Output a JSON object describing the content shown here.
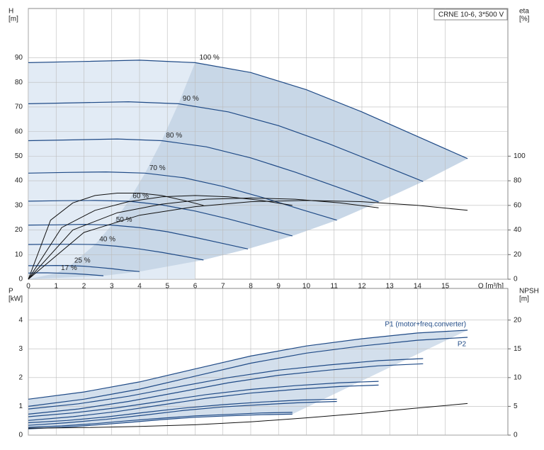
{
  "chart_data": [
    {
      "type": "line",
      "box_label": "CRNE 10-6, 3*500 V",
      "ylabel": [
        "H",
        "[m]"
      ],
      "y2label": [
        "eta",
        "[%]"
      ],
      "xlabel": "Q [m³/h]",
      "xlim": [
        0,
        17.25
      ],
      "xticks": [
        0,
        1,
        2,
        3,
        4,
        5,
        6,
        7,
        8,
        9,
        10,
        11,
        12,
        13,
        14,
        15
      ],
      "ylim": [
        0,
        110
      ],
      "yticks": [
        0,
        10,
        20,
        30,
        40,
        50,
        60,
        70,
        80,
        90
      ],
      "y2lim": [
        0,
        220
      ],
      "y2ticks": [
        0,
        20,
        40,
        60,
        80,
        100
      ],
      "grid": true,
      "series": [
        {
          "name": "100 %",
          "color": "#1f4a86",
          "x": [
            0,
            2,
            4,
            6,
            8,
            10,
            12,
            14,
            15.8
          ],
          "values": [
            88,
            88.5,
            89,
            88,
            84,
            77,
            68,
            58,
            49
          ]
        },
        {
          "name": "90 %",
          "color": "#1f4a86",
          "x": [
            0,
            1.8,
            3.6,
            5.4,
            7.2,
            9,
            10.8,
            12.6,
            14.2
          ],
          "values": [
            71.3,
            71.7,
            72.1,
            71.3,
            68,
            62.4,
            55.1,
            47,
            39.7
          ]
        },
        {
          "name": "80 %",
          "color": "#1f4a86",
          "x": [
            0,
            1.6,
            3.2,
            4.8,
            6.4,
            8,
            9.6,
            11.2,
            12.6
          ],
          "values": [
            56.3,
            56.6,
            57,
            56.3,
            53.8,
            49.3,
            43.5,
            37.1,
            31.4
          ]
        },
        {
          "name": "70 %",
          "color": "#1f4a86",
          "x": [
            0,
            1.4,
            2.8,
            4.2,
            5.6,
            7,
            8.4,
            9.8,
            11.1
          ],
          "values": [
            43.1,
            43.4,
            43.6,
            43.1,
            41.2,
            37.7,
            33.3,
            28.4,
            24
          ]
        },
        {
          "name": "60 %",
          "color": "#1f4a86",
          "x": [
            0,
            1.2,
            2.4,
            3.6,
            4.8,
            6,
            7.2,
            8.4,
            9.5
          ],
          "values": [
            31.7,
            31.9,
            32,
            31.7,
            30.2,
            27.7,
            24.5,
            20.9,
            17.6
          ]
        },
        {
          "name": "50 %",
          "color": "#1f4a86",
          "x": [
            0,
            1,
            2,
            3,
            4,
            5,
            6,
            7,
            7.9
          ],
          "values": [
            22,
            22.1,
            22.3,
            22,
            21,
            19.3,
            17,
            14.5,
            12.3
          ]
        },
        {
          "name": "40 %",
          "color": "#1f4a86",
          "x": [
            0,
            0.8,
            1.6,
            2.4,
            3.2,
            4,
            4.8,
            5.6,
            6.3
          ],
          "values": [
            14.1,
            14.2,
            14.2,
            14.1,
            13.4,
            12.3,
            10.9,
            9.3,
            7.8
          ]
        },
        {
          "name": "25 %",
          "color": "#1f4a86",
          "x": [
            0,
            0.5,
            1,
            1.5,
            2,
            2.5,
            3,
            3.5,
            4
          ],
          "values": [
            5.5,
            5.5,
            5.6,
            5.5,
            5.3,
            4.8,
            4.3,
            3.6,
            3.1
          ]
        },
        {
          "name": "17 %",
          "color": "#1f4a86",
          "x": [
            0,
            0.34,
            0.68,
            1.02,
            1.36,
            1.7,
            2.04,
            2.38,
            2.7
          ],
          "values": [
            2.5,
            2.6,
            2.6,
            2.5,
            2.4,
            2.2,
            2,
            1.7,
            1.4
          ]
        },
        {
          "color": "#111111",
          "axis": "y2",
          "x": [
            0,
            2,
            4,
            6,
            8,
            10,
            12,
            14,
            15.8
          ],
          "values": [
            0,
            38,
            52,
            59,
            63,
            64,
            63,
            60,
            56
          ]
        },
        {
          "color": "#111111",
          "axis": "y2",
          "x": [
            0,
            1.6,
            3.2,
            4.8,
            6.4,
            8,
            9.6,
            11.2,
            12.6
          ],
          "values": [
            0,
            40,
            54,
            61,
            65,
            66,
            65,
            62,
            58
          ]
        },
        {
          "color": "#111111",
          "axis": "y2",
          "x": [
            0,
            1.2,
            2.4,
            3.6,
            4.8,
            6,
            7.2,
            8.4,
            9.5
          ],
          "values": [
            0,
            42,
            56,
            63,
            67,
            68,
            67,
            64,
            60
          ]
        },
        {
          "color": "#111111",
          "axis": "y2",
          "x": [
            0,
            0.8,
            1.6,
            2.4,
            3.2,
            4,
            4.8,
            5.6,
            6.3
          ],
          "values": [
            0,
            48,
            62,
            68,
            70,
            70,
            68,
            64,
            60
          ]
        }
      ]
    },
    {
      "type": "line",
      "ylabel": [
        "P",
        "[kW]"
      ],
      "y2label": [
        "NPSH",
        "[m]"
      ],
      "xlim": [
        0,
        17.25
      ],
      "ylim": [
        0,
        5.1
      ],
      "yticks": [
        0,
        1,
        2,
        3,
        4
      ],
      "y2lim": [
        0,
        25.5
      ],
      "y2ticks": [
        0,
        5,
        10,
        15,
        20
      ],
      "grid": true,
      "series": [
        {
          "name": "P1 (motor+freq.converter)",
          "color": "#1f4a86",
          "x": [
            0,
            2,
            4,
            6,
            8,
            10,
            12,
            14,
            15.8
          ],
          "values": [
            1.25,
            1.5,
            1.85,
            2.3,
            2.75,
            3.1,
            3.35,
            3.55,
            3.65
          ]
        },
        {
          "name": "P2",
          "color": "#1f4a86",
          "x": [
            0,
            2,
            4,
            6,
            8,
            10,
            12,
            14,
            15.8
          ],
          "values": [
            1,
            1.25,
            1.6,
            2.05,
            2.5,
            2.85,
            3.1,
            3.3,
            3.4
          ]
        },
        {
          "color": "#1f4a86",
          "x": [
            0,
            1.8,
            3.6,
            5.4,
            7.2,
            9,
            10.8,
            12.6,
            14.2
          ],
          "values": [
            0.91,
            1.09,
            1.35,
            1.68,
            2,
            2.26,
            2.44,
            2.59,
            2.66
          ]
        },
        {
          "color": "#1f4a86",
          "x": [
            0,
            1.8,
            3.6,
            5.4,
            7.2,
            9,
            10.8,
            12.6,
            14.2
          ],
          "values": [
            0.73,
            0.91,
            1.17,
            1.49,
            1.82,
            2.08,
            2.26,
            2.41,
            2.48
          ]
        },
        {
          "color": "#1f4a86",
          "x": [
            0,
            1.6,
            3.2,
            4.8,
            6.4,
            8,
            9.6,
            11.2,
            12.6
          ],
          "values": [
            0.64,
            0.77,
            0.95,
            1.18,
            1.41,
            1.59,
            1.72,
            1.82,
            1.87
          ]
        },
        {
          "color": "#1f4a86",
          "x": [
            0,
            1.6,
            3.2,
            4.8,
            6.4,
            8,
            9.6,
            11.2,
            12.6
          ],
          "values": [
            0.51,
            0.64,
            0.82,
            1.05,
            1.28,
            1.46,
            1.59,
            1.69,
            1.74
          ]
        },
        {
          "color": "#1f4a86",
          "x": [
            0,
            1.4,
            2.8,
            4.2,
            5.6,
            7,
            8.4,
            9.8,
            11.1
          ],
          "values": [
            0.43,
            0.51,
            0.63,
            0.79,
            0.94,
            1.06,
            1.15,
            1.22,
            1.25
          ]
        },
        {
          "color": "#1f4a86",
          "x": [
            0,
            1.4,
            2.8,
            4.2,
            5.6,
            7,
            8.4,
            9.8,
            11.1
          ],
          "values": [
            0.34,
            0.43,
            0.55,
            0.7,
            0.86,
            0.98,
            1.06,
            1.13,
            1.17
          ]
        },
        {
          "color": "#1f4a86",
          "x": [
            0,
            1.2,
            2.4,
            3.6,
            4.8,
            6,
            7.2,
            8.4,
            9.5
          ],
          "values": [
            0.27,
            0.32,
            0.4,
            0.5,
            0.59,
            0.67,
            0.72,
            0.77,
            0.79
          ]
        },
        {
          "color": "#1f4a86",
          "x": [
            0,
            1.2,
            2.4,
            3.6,
            4.8,
            6,
            7.2,
            8.4,
            9.5
          ],
          "values": [
            0.22,
            0.27,
            0.35,
            0.44,
            0.54,
            0.62,
            0.67,
            0.71,
            0.73
          ]
        },
        {
          "color": "#111111",
          "axis": "y2",
          "x": [
            0,
            2,
            4,
            6,
            8,
            10,
            12,
            14,
            15.8
          ],
          "values": [
            1.2,
            1.3,
            1.5,
            1.8,
            2.3,
            3,
            3.8,
            4.7,
            5.5
          ]
        }
      ]
    }
  ]
}
